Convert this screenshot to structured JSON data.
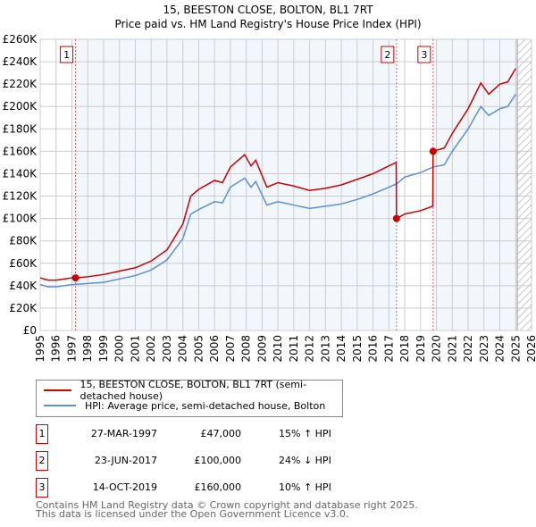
{
  "chart_data": {
    "type": "line",
    "title": "15, BEESTON CLOSE, BOLTON, BL1 7RT",
    "subtitle": "Price paid vs. HM Land Registry's House Price Index (HPI)",
    "xlim": [
      1995,
      2026
    ],
    "ylim": [
      0,
      260000
    ],
    "x_ticks": [
      "1995",
      "1996",
      "1997",
      "1998",
      "1999",
      "2000",
      "2001",
      "2002",
      "2003",
      "2004",
      "2005",
      "2006",
      "2007",
      "2008",
      "2009",
      "2010",
      "2011",
      "2012",
      "2013",
      "2014",
      "2015",
      "2016",
      "2017",
      "2018",
      "2019",
      "2020",
      "2021",
      "2022",
      "2023",
      "2024",
      "2025",
      "2026"
    ],
    "y_ticks": [
      "£0",
      "£20K",
      "£40K",
      "£60K",
      "£80K",
      "£100K",
      "£120K",
      "£140K",
      "£160K",
      "£180K",
      "£200K",
      "£220K",
      "£240K",
      "£260K"
    ],
    "series": [
      {
        "name": "15, BEESTON CLOSE, BOLTON, BL1 7RT (semi-detached house)",
        "color": "#cc0000",
        "x": [
          1995,
          1995.5,
          1996,
          1996.5,
          1997,
          1997.23,
          1998,
          1999,
          2000,
          2001,
          2002,
          2003,
          2004,
          2004.5,
          2005,
          2006,
          2006.5,
          2007,
          2007.9,
          2008.3,
          2008.6,
          2009.3,
          2010,
          2011,
          2012,
          2013,
          2014,
          2015,
          2016,
          2017,
          2017.46,
          2017.48,
          2018,
          2019,
          2019.77,
          2019.79,
          2020.5,
          2021,
          2022,
          2022.8,
          2023.3,
          2024,
          2024.5,
          2025
        ],
        "values": [
          47000,
          45000,
          45000,
          46000,
          47000,
          47000,
          48000,
          50000,
          53000,
          56000,
          62000,
          72000,
          95000,
          120000,
          126000,
          134000,
          132000,
          146000,
          157000,
          147000,
          152000,
          128000,
          132000,
          129000,
          125000,
          127000,
          130000,
          135000,
          140000,
          147000,
          150000,
          100000,
          104000,
          107000,
          111000,
          160000,
          163000,
          176000,
          198000,
          221000,
          211000,
          220000,
          222000,
          234000
        ]
      },
      {
        "name": "HPI: Average price, semi-detached house, Bolton",
        "color": "#5b8fd6",
        "x": [
          1995,
          1995.5,
          1996,
          1996.5,
          1997,
          1998,
          1999,
          2000,
          2001,
          2002,
          2003,
          2004,
          2004.5,
          2005,
          2006,
          2006.5,
          2007,
          2007.9,
          2008.3,
          2008.6,
          2009.3,
          2010,
          2011,
          2012,
          2013,
          2014,
          2015,
          2016,
          2017,
          2017.5,
          2018,
          2019,
          2019.8,
          2020.5,
          2021,
          2022,
          2022.8,
          2023.3,
          2024,
          2024.5,
          2025
        ],
        "values": [
          41000,
          39000,
          39000,
          40000,
          41000,
          42000,
          43000,
          46000,
          49000,
          54000,
          63000,
          82000,
          104000,
          108000,
          115000,
          114000,
          128000,
          136000,
          128000,
          133000,
          112000,
          115000,
          112000,
          109000,
          111000,
          113000,
          117000,
          122000,
          128000,
          131000,
          137000,
          141000,
          146000,
          148000,
          160000,
          180000,
          200000,
          192000,
          198000,
          200000,
          211000
        ]
      }
    ],
    "sales": [
      {
        "label": "1",
        "x": 1997.23,
        "value": 47000,
        "date": "27-MAR-1997",
        "price": "£47,000",
        "hpi": "15% ↑ HPI"
      },
      {
        "label": "2",
        "x": 2017.48,
        "value": 100000,
        "date": "23-JUN-2017",
        "price": "£100,000",
        "hpi": "24% ↓ HPI"
      },
      {
        "label": "3",
        "x": 2019.79,
        "value": 160000,
        "date": "14-OCT-2019",
        "price": "£160,000",
        "hpi": "10% ↑ HPI"
      }
    ],
    "data_end": 2025.1,
    "grid": true,
    "legend": "bottom"
  },
  "footer": {
    "line1": "Contains HM Land Registry data © Crown copyright and database right 2025.",
    "line2": "This data is licensed under the Open Government Licence v3.0."
  }
}
